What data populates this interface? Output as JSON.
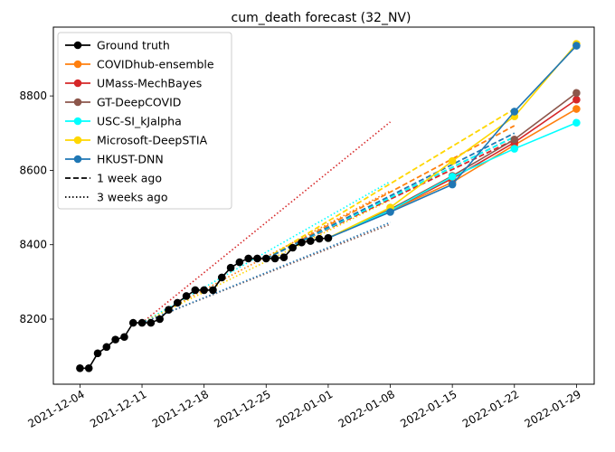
{
  "chart_data": {
    "type": "line",
    "title": "cum_death forecast (32_NV)",
    "xlabel": "",
    "ylabel": "",
    "xlim": [
      "2021-12-01",
      "2022-01-31"
    ],
    "ylim": [
      8025,
      8985
    ],
    "x_ticks": [
      "2021-12-04",
      "2021-12-11",
      "2021-12-18",
      "2021-12-25",
      "2022-01-01",
      "2022-01-08",
      "2022-01-15",
      "2022-01-22",
      "2022-01-29"
    ],
    "y_ticks": [
      8200,
      8400,
      8600,
      8800
    ],
    "grid": false,
    "legend_position": "top-left",
    "ground_truth": {
      "name": "Ground truth",
      "color": "#000000",
      "x": [
        "2021-12-04",
        "2021-12-05",
        "2021-12-06",
        "2021-12-07",
        "2021-12-08",
        "2021-12-09",
        "2021-12-10",
        "2021-12-11",
        "2021-12-12",
        "2021-12-13",
        "2021-12-14",
        "2021-12-15",
        "2021-12-16",
        "2021-12-17",
        "2021-12-18",
        "2021-12-19",
        "2021-12-20",
        "2021-12-21",
        "2021-12-22",
        "2021-12-23",
        "2021-12-24",
        "2021-12-25",
        "2021-12-26",
        "2021-12-27",
        "2021-12-28",
        "2021-12-29",
        "2021-12-30",
        "2021-12-31",
        "2022-01-01"
      ],
      "y": [
        8068,
        8068,
        8108,
        8125,
        8145,
        8152,
        8190,
        8190,
        8190,
        8200,
        8225,
        8244,
        8262,
        8278,
        8278,
        8278,
        8312,
        8338,
        8353,
        8363,
        8363,
        8363,
        8363,
        8366,
        8392,
        8406,
        8410,
        8416,
        8418
      ]
    },
    "series": [
      {
        "name": "COVIDhub-ensemble",
        "color": "#ff7f0e",
        "x": [
          "2022-01-01",
          "2022-01-08",
          "2022-01-15",
          "2022-01-22",
          "2022-01-29"
        ],
        "y": [
          8418,
          8492,
          8568,
          8668,
          8765
        ],
        "forecast_1w": {
          "x": [
            "2021-12-25",
            "2022-01-22"
          ],
          "y": [
            8363,
            8720
          ]
        },
        "forecast_3w": {
          "x": [
            "2021-12-11",
            "2022-01-08"
          ],
          "y": [
            8190,
            8545
          ]
        }
      },
      {
        "name": "UMass-MechBayes",
        "color": "#d62728",
        "x": [
          "2022-01-01",
          "2022-01-08",
          "2022-01-15",
          "2022-01-22",
          "2022-01-29"
        ],
        "y": [
          8418,
          8492,
          8578,
          8675,
          8790
        ],
        "forecast_1w": {
          "x": [
            "2021-12-25",
            "2022-01-22"
          ],
          "y": [
            8363,
            8682
          ]
        },
        "forecast_3w": {
          "x": [
            "2021-12-11",
            "2022-01-08"
          ],
          "y": [
            8190,
            8730
          ]
        }
      },
      {
        "name": "GT-DeepCOVID",
        "color": "#8c564b",
        "x": [
          "2022-01-01",
          "2022-01-08",
          "2022-01-15",
          "2022-01-22",
          "2022-01-29"
        ],
        "y": [
          8418,
          8495,
          8585,
          8683,
          8808
        ],
        "forecast_1w": {
          "x": [
            "2021-12-25",
            "2022-01-22"
          ],
          "y": [
            8363,
            8690
          ]
        },
        "forecast_3w": {
          "x": [
            "2021-12-11",
            "2022-01-08"
          ],
          "y": [
            8190,
            8455
          ]
        }
      },
      {
        "name": "USC-SI_kJalpha",
        "color": "#00ffff",
        "x": [
          "2022-01-01",
          "2022-01-08",
          "2022-01-15",
          "2022-01-22",
          "2022-01-29"
        ],
        "y": [
          8418,
          8492,
          8583,
          8658,
          8728
        ],
        "forecast_1w": {
          "x": [
            "2021-12-25",
            "2022-01-22"
          ],
          "y": [
            8363,
            8690
          ]
        },
        "forecast_3w": {
          "x": [
            "2021-12-11",
            "2022-01-08"
          ],
          "y": [
            8190,
            8570
          ]
        }
      },
      {
        "name": "Microsoft-DeepSTIA",
        "color": "#ffd700",
        "x": [
          "2022-01-01",
          "2022-01-08",
          "2022-01-15",
          "2022-01-22",
          "2022-01-29"
        ],
        "y": [
          8418,
          8500,
          8625,
          8745,
          8940
        ],
        "forecast_1w": {
          "x": [
            "2021-12-25",
            "2022-01-22"
          ],
          "y": [
            8363,
            8765
          ]
        },
        "forecast_3w": {
          "x": [
            "2021-12-11",
            "2022-01-08"
          ],
          "y": [
            8190,
            8520
          ]
        }
      },
      {
        "name": "HKUST-DNN",
        "color": "#1f77b4",
        "x": [
          "2022-01-01",
          "2022-01-08",
          "2022-01-15",
          "2022-01-22",
          "2022-01-29"
        ],
        "y": [
          8418,
          8488,
          8562,
          8758,
          8935
        ],
        "forecast_1w": {
          "x": [
            "2021-12-25",
            "2022-01-22"
          ],
          "y": [
            8363,
            8700
          ]
        },
        "forecast_3w": {
          "x": [
            "2021-12-11",
            "2022-01-08"
          ],
          "y": [
            8190,
            8460
          ]
        }
      }
    ],
    "legend_extra": [
      {
        "name": "1 week ago",
        "style": "dashed",
        "color": "#000000"
      },
      {
        "name": "3 weeks ago",
        "style": "dotted",
        "color": "#000000"
      }
    ]
  }
}
